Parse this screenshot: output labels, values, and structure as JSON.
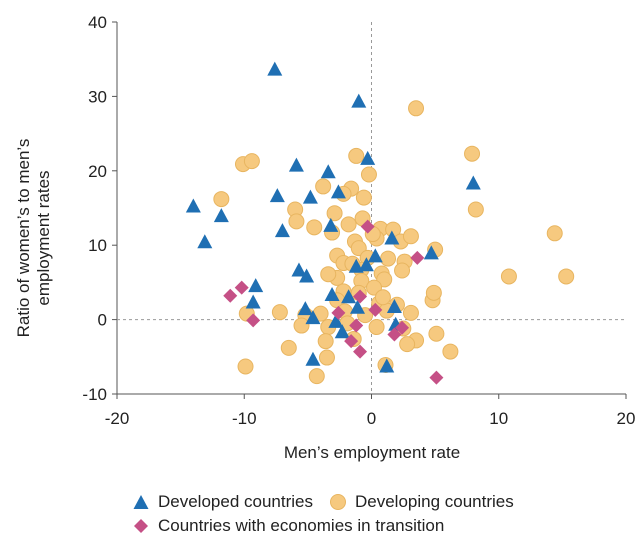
{
  "chart_data": {
    "type": "scatter",
    "title": "",
    "xlabel": "Men’s employment rate",
    "ylabel": "Ratio of women’s to men’s employment rates",
    "xlim": [
      -20,
      20
    ],
    "ylim": [
      -10,
      40
    ],
    "xticks": [
      "-20",
      "-10",
      "0",
      "10",
      "20"
    ],
    "yticks": [
      "40",
      "30",
      "20",
      "10",
      "0",
      "-10"
    ],
    "reference_lines": [
      "x=0 dashed",
      "y=0 dashed"
    ],
    "grid": false,
    "legend_position": "bottom",
    "series": [
      {
        "name": "Developed countries",
        "marker": "triangle",
        "color": "#1f6fb3",
        "points": [
          [
            -7.6,
            33.6
          ],
          [
            -1.0,
            29.3
          ],
          [
            -0.3,
            21.6
          ],
          [
            -5.9,
            20.7
          ],
          [
            -3.4,
            19.8
          ],
          [
            -7.4,
            16.6
          ],
          [
            -4.8,
            16.4
          ],
          [
            -2.6,
            17.1
          ],
          [
            8.0,
            18.3
          ],
          [
            -14.0,
            15.2
          ],
          [
            -11.8,
            13.9
          ],
          [
            -13.1,
            10.4
          ],
          [
            -7.0,
            11.9
          ],
          [
            -3.2,
            12.6
          ],
          [
            4.7,
            8.9
          ],
          [
            0.3,
            8.5
          ],
          [
            1.6,
            10.9
          ],
          [
            -5.7,
            6.6
          ],
          [
            -5.1,
            5.8
          ],
          [
            -1.2,
            7.1
          ],
          [
            -9.1,
            4.5
          ],
          [
            -9.3,
            2.3
          ],
          [
            -5.2,
            1.4
          ],
          [
            -1.8,
            3.0
          ],
          [
            -1.1,
            1.6
          ],
          [
            1.8,
            1.7
          ],
          [
            -4.6,
            0.2
          ],
          [
            -2.8,
            -0.3
          ],
          [
            -2.3,
            -1.7
          ],
          [
            1.9,
            -0.7
          ],
          [
            -4.6,
            -5.4
          ],
          [
            1.2,
            -6.3
          ],
          [
            -0.4,
            7.3
          ],
          [
            -3.1,
            3.3
          ]
        ]
      },
      {
        "name": "Developing countries",
        "marker": "circle",
        "color": "#f6c97f",
        "points": [
          [
            3.5,
            28.4
          ],
          [
            7.9,
            22.3
          ],
          [
            -1.2,
            22.0
          ],
          [
            -10.1,
            20.9
          ],
          [
            -9.4,
            21.3
          ],
          [
            -0.2,
            19.5
          ],
          [
            -1.6,
            17.6
          ],
          [
            -3.8,
            17.9
          ],
          [
            -2.2,
            16.9
          ],
          [
            -0.6,
            16.4
          ],
          [
            -6.0,
            14.8
          ],
          [
            8.2,
            14.8
          ],
          [
            -11.8,
            16.2
          ],
          [
            -5.9,
            13.2
          ],
          [
            -2.9,
            14.3
          ],
          [
            -1.8,
            12.8
          ],
          [
            -0.7,
            13.6
          ],
          [
            0.7,
            12.2
          ],
          [
            1.7,
            12.1
          ],
          [
            14.4,
            11.6
          ],
          [
            -4.5,
            12.4
          ],
          [
            -3.1,
            11.7
          ],
          [
            -1.3,
            10.5
          ],
          [
            0.4,
            10.9
          ],
          [
            2.3,
            10.5
          ],
          [
            3.1,
            11.2
          ],
          [
            -1.0,
            9.6
          ],
          [
            -2.7,
            8.6
          ],
          [
            -0.3,
            8.3
          ],
          [
            1.3,
            8.2
          ],
          [
            2.6,
            7.8
          ],
          [
            5.0,
            9.4
          ],
          [
            -2.2,
            7.6
          ],
          [
            -0.8,
            6.7
          ],
          [
            0.8,
            6.2
          ],
          [
            2.4,
            6.6
          ],
          [
            10.8,
            5.8
          ],
          [
            15.3,
            5.8
          ],
          [
            -2.7,
            5.6
          ],
          [
            -0.8,
            5.2
          ],
          [
            1.0,
            5.4
          ],
          [
            -2.2,
            3.8
          ],
          [
            -1.0,
            3.6
          ],
          [
            0.2,
            4.3
          ],
          [
            -2.7,
            2.6
          ],
          [
            0.6,
            2.2
          ],
          [
            2.0,
            2.0
          ],
          [
            4.8,
            2.6
          ],
          [
            4.9,
            3.6
          ],
          [
            -7.2,
            1.0
          ],
          [
            -9.8,
            0.8
          ],
          [
            -5.2,
            0.6
          ],
          [
            -4.0,
            0.8
          ],
          [
            -2.1,
            1.1
          ],
          [
            -0.5,
            0.6
          ],
          [
            1.2,
            1.2
          ],
          [
            3.1,
            0.9
          ],
          [
            -5.5,
            -0.8
          ],
          [
            -3.4,
            -1.0
          ],
          [
            -1.9,
            -0.5
          ],
          [
            0.4,
            -1.0
          ],
          [
            2.5,
            -1.2
          ],
          [
            5.1,
            -1.9
          ],
          [
            -6.5,
            -3.8
          ],
          [
            -3.6,
            -2.9
          ],
          [
            -1.4,
            -2.6
          ],
          [
            3.5,
            -2.8
          ],
          [
            2.8,
            -3.3
          ],
          [
            6.2,
            -4.3
          ],
          [
            -9.9,
            -6.3
          ],
          [
            -3.5,
            -5.1
          ],
          [
            1.1,
            -6.1
          ],
          [
            -4.3,
            -7.6
          ],
          [
            0.9,
            3.0
          ],
          [
            -3.4,
            6.1
          ],
          [
            -1.5,
            7.5
          ],
          [
            0.1,
            11.5
          ]
        ]
      },
      {
        "name": "Countries with economies in transition",
        "marker": "diamond",
        "color": "#c55086",
        "points": [
          [
            -0.3,
            12.5
          ],
          [
            3.6,
            8.3
          ],
          [
            -10.2,
            4.3
          ],
          [
            -11.1,
            3.2
          ],
          [
            -0.9,
            3.1
          ],
          [
            0.3,
            1.3
          ],
          [
            -2.6,
            0.9
          ],
          [
            -9.3,
            -0.1
          ],
          [
            -1.2,
            -0.8
          ],
          [
            2.4,
            -1.1
          ],
          [
            1.8,
            -2.0
          ],
          [
            -1.6,
            -2.9
          ],
          [
            -0.9,
            -4.3
          ],
          [
            5.1,
            -7.8
          ]
        ]
      }
    ]
  }
}
